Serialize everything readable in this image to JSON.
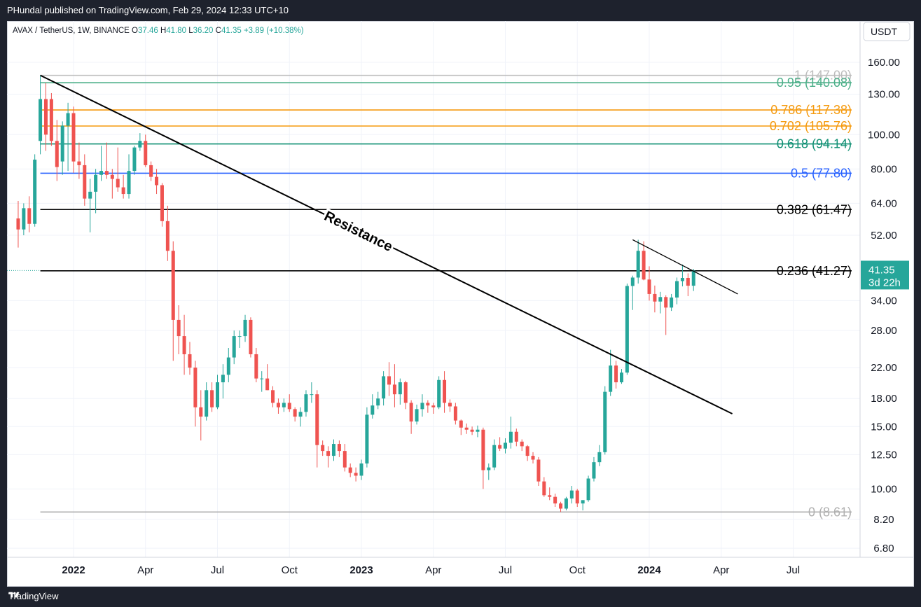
{
  "header": {
    "published": "PHundal published on TradingView.com, Feb 29, 2024 12:33 UTC+10"
  },
  "footer": {
    "brand": "TradingView"
  },
  "colors": {
    "up": "#26a69a",
    "down": "#ef5350",
    "grid": "#f0f3fa"
  },
  "chart_data": {
    "type": "candlestick",
    "symbol_line": {
      "symbol": "AVAX / TetherUS, 1W, BINANCE",
      "o_label": "O",
      "o": "37.46",
      "h_label": "H",
      "h": "41.80",
      "l_label": "L",
      "l": "36.20",
      "c_label": "C",
      "c": "41.35",
      "change": "+3.89 (+10.38%)"
    },
    "currency": "USDT",
    "scale": "log",
    "y_ticks": [
      "160.00",
      "130.00",
      "100.00",
      "80.00",
      "64.00",
      "52.00",
      "34.00",
      "28.00",
      "22.00",
      "18.00",
      "15.00",
      "12.50",
      "10.00",
      "8.20",
      "6.80"
    ],
    "x_ticks": [
      {
        "label": "2022",
        "date": "2022-01-03",
        "bold": true
      },
      {
        "label": "Apr",
        "date": "2022-04-04",
        "bold": false
      },
      {
        "label": "Jul",
        "date": "2022-07-04",
        "bold": false
      },
      {
        "label": "Oct",
        "date": "2022-10-03",
        "bold": false
      },
      {
        "label": "2023",
        "date": "2023-01-02",
        "bold": true
      },
      {
        "label": "Apr",
        "date": "2023-04-03",
        "bold": false
      },
      {
        "label": "Jul",
        "date": "2023-07-03",
        "bold": false
      },
      {
        "label": "Oct",
        "date": "2023-10-02",
        "bold": false
      },
      {
        "label": "2024",
        "date": "2024-01-01",
        "bold": true
      },
      {
        "label": "Apr",
        "date": "2024-04-01",
        "bold": false
      },
      {
        "label": "Jul",
        "date": "2024-07-01",
        "bold": false
      }
    ],
    "fib_levels": [
      {
        "label": "1 (147.00)",
        "value": 147.0,
        "color": "#bdbdbd"
      },
      {
        "label": "0.95 (140.08)",
        "value": 140.08,
        "color": "#4caf89"
      },
      {
        "label": "0.786 (117.38)",
        "value": 117.38,
        "color": "#f59a0e"
      },
      {
        "label": "0.702 (105.76)",
        "value": 105.76,
        "color": "#f59a0e"
      },
      {
        "label": "0.618 (94.14)",
        "value": 94.14,
        "color": "#0f8f73"
      },
      {
        "label": "0.5 (77.80)",
        "value": 77.8,
        "color": "#2962ff"
      },
      {
        "label": "0.382 (61.47)",
        "value": 61.47,
        "color": "#000000"
      },
      {
        "label": "0.236 (41.27)",
        "value": 41.27,
        "color": "#000000"
      },
      {
        "label": "0 (8.61)",
        "value": 8.61,
        "color": "#b0b0b0"
      }
    ],
    "trendlines": [
      {
        "from": {
          "date": "2021-11-22",
          "price": 147.0
        },
        "to": {
          "date": "2024-04-15",
          "price": 16.3
        },
        "label": "Resistance",
        "width": 2
      },
      {
        "from": {
          "date": "2023-12-11",
          "price": 50.5
        },
        "to": {
          "date": "2024-04-22",
          "price": 35.5
        },
        "label": "",
        "width": 1.3
      }
    ],
    "price_badge": {
      "price": "41.35",
      "countdown": "3d 22h",
      "value": 41.35
    },
    "candles": [
      {
        "d": "2021-10-25",
        "o": 58,
        "h": 65,
        "l": 48,
        "c": 54
      },
      {
        "d": "2021-11-01",
        "o": 54,
        "h": 64,
        "l": 52,
        "c": 62
      },
      {
        "d": "2021-11-08",
        "o": 62,
        "h": 67,
        "l": 53,
        "c": 56
      },
      {
        "d": "2021-11-15",
        "o": 56,
        "h": 88,
        "l": 55,
        "c": 85
      },
      {
        "d": "2021-11-22",
        "o": 96,
        "h": 147,
        "l": 88,
        "c": 126
      },
      {
        "d": "2021-11-29",
        "o": 126,
        "h": 140,
        "l": 90,
        "c": 100
      },
      {
        "d": "2021-12-06",
        "o": 126,
        "h": 131,
        "l": 93,
        "c": 96
      },
      {
        "d": "2021-12-13",
        "o": 96,
        "h": 110,
        "l": 74,
        "c": 81
      },
      {
        "d": "2021-12-20",
        "o": 84,
        "h": 109,
        "l": 77,
        "c": 106
      },
      {
        "d": "2021-12-27",
        "o": 106,
        "h": 123,
        "l": 79,
        "c": 115
      },
      {
        "d": "2022-01-03",
        "o": 115,
        "h": 120,
        "l": 78,
        "c": 84
      },
      {
        "d": "2022-01-10",
        "o": 84,
        "h": 95,
        "l": 75,
        "c": 82
      },
      {
        "d": "2022-01-17",
        "o": 82,
        "h": 88,
        "l": 63,
        "c": 66
      },
      {
        "d": "2022-01-24",
        "o": 66,
        "h": 75,
        "l": 53,
        "c": 69
      },
      {
        "d": "2022-01-31",
        "o": 69,
        "h": 80,
        "l": 60,
        "c": 77
      },
      {
        "d": "2022-02-07",
        "o": 77,
        "h": 93,
        "l": 74,
        "c": 79
      },
      {
        "d": "2022-02-14",
        "o": 79,
        "h": 95,
        "l": 75,
        "c": 77
      },
      {
        "d": "2022-02-21",
        "o": 77,
        "h": 80,
        "l": 66,
        "c": 75
      },
      {
        "d": "2022-02-28",
        "o": 75,
        "h": 92,
        "l": 69,
        "c": 71
      },
      {
        "d": "2022-03-07",
        "o": 71,
        "h": 77,
        "l": 66,
        "c": 68
      },
      {
        "d": "2022-03-14",
        "o": 68,
        "h": 88,
        "l": 66,
        "c": 79
      },
      {
        "d": "2022-03-21",
        "o": 79,
        "h": 93,
        "l": 77,
        "c": 92
      },
      {
        "d": "2022-03-28",
        "o": 92,
        "h": 101,
        "l": 90,
        "c": 96
      },
      {
        "d": "2022-04-04",
        "o": 96,
        "h": 100,
        "l": 81,
        "c": 82
      },
      {
        "d": "2022-04-11",
        "o": 82,
        "h": 84,
        "l": 74,
        "c": 76
      },
      {
        "d": "2022-04-18",
        "o": 76,
        "h": 80,
        "l": 68,
        "c": 72
      },
      {
        "d": "2022-04-25",
        "o": 72,
        "h": 73,
        "l": 55,
        "c": 57
      },
      {
        "d": "2022-05-02",
        "o": 57,
        "h": 63,
        "l": 44,
        "c": 47
      },
      {
        "d": "2022-05-09",
        "o": 47,
        "h": 50,
        "l": 23,
        "c": 30
      },
      {
        "d": "2022-05-16",
        "o": 30,
        "h": 33,
        "l": 24,
        "c": 27
      },
      {
        "d": "2022-05-23",
        "o": 27,
        "h": 31,
        "l": 21,
        "c": 24
      },
      {
        "d": "2022-05-30",
        "o": 24,
        "h": 26,
        "l": 21,
        "c": 22
      },
      {
        "d": "2022-06-06",
        "o": 22,
        "h": 23,
        "l": 15,
        "c": 17
      },
      {
        "d": "2022-06-13",
        "o": 17,
        "h": 19,
        "l": 13.7,
        "c": 16
      },
      {
        "d": "2022-06-20",
        "o": 16,
        "h": 20,
        "l": 15.6,
        "c": 19
      },
      {
        "d": "2022-06-27",
        "o": 19,
        "h": 20,
        "l": 16.5,
        "c": 17
      },
      {
        "d": "2022-07-04",
        "o": 17,
        "h": 21,
        "l": 16.8,
        "c": 20
      },
      {
        "d": "2022-07-11",
        "o": 20,
        "h": 22.5,
        "l": 18,
        "c": 21
      },
      {
        "d": "2022-07-18",
        "o": 21,
        "h": 25,
        "l": 20,
        "c": 23.5
      },
      {
        "d": "2022-07-25",
        "o": 23.5,
        "h": 28,
        "l": 22.5,
        "c": 27
      },
      {
        "d": "2022-08-01",
        "o": 27,
        "h": 28,
        "l": 25,
        "c": 27
      },
      {
        "d": "2022-08-08",
        "o": 27,
        "h": 31,
        "l": 26,
        "c": 30
      },
      {
        "d": "2022-08-15",
        "o": 30,
        "h": 30.5,
        "l": 23.5,
        "c": 24
      },
      {
        "d": "2022-08-22",
        "o": 24,
        "h": 25,
        "l": 20,
        "c": 20.5
      },
      {
        "d": "2022-08-29",
        "o": 20.5,
        "h": 21.5,
        "l": 18.8,
        "c": 20.5
      },
      {
        "d": "2022-09-05",
        "o": 20.5,
        "h": 22.5,
        "l": 19,
        "c": 19
      },
      {
        "d": "2022-09-12",
        "o": 19,
        "h": 19.5,
        "l": 17,
        "c": 17.5
      },
      {
        "d": "2022-09-19",
        "o": 17.5,
        "h": 18,
        "l": 16.3,
        "c": 17
      },
      {
        "d": "2022-09-26",
        "o": 17,
        "h": 18,
        "l": 16.5,
        "c": 17.5
      },
      {
        "d": "2022-10-03",
        "o": 17.5,
        "h": 18.5,
        "l": 16.5,
        "c": 16.8
      },
      {
        "d": "2022-10-10",
        "o": 16.8,
        "h": 17,
        "l": 15.5,
        "c": 16
      },
      {
        "d": "2022-10-17",
        "o": 16,
        "h": 17,
        "l": 15,
        "c": 16.5
      },
      {
        "d": "2022-10-24",
        "o": 16.5,
        "h": 19,
        "l": 16,
        "c": 18.5
      },
      {
        "d": "2022-10-31",
        "o": 18.5,
        "h": 20,
        "l": 17.5,
        "c": 18.5
      },
      {
        "d": "2022-11-07",
        "o": 18.5,
        "h": 19,
        "l": 11.5,
        "c": 13.3
      },
      {
        "d": "2022-11-14",
        "o": 13.3,
        "h": 13.7,
        "l": 12.4,
        "c": 12.8
      },
      {
        "d": "2022-11-21",
        "o": 12.8,
        "h": 13.2,
        "l": 11.5,
        "c": 12.4
      },
      {
        "d": "2022-11-28",
        "o": 12.4,
        "h": 13.8,
        "l": 12,
        "c": 13.4
      },
      {
        "d": "2022-12-05",
        "o": 13.4,
        "h": 13.7,
        "l": 12.3,
        "c": 12.8
      },
      {
        "d": "2022-12-12",
        "o": 12.8,
        "h": 13.4,
        "l": 11.2,
        "c": 11.5
      },
      {
        "d": "2022-12-19",
        "o": 11.5,
        "h": 11.8,
        "l": 10.8,
        "c": 11.1
      },
      {
        "d": "2022-12-26",
        "o": 11.1,
        "h": 11.5,
        "l": 10.5,
        "c": 10.9
      },
      {
        "d": "2023-01-02",
        "o": 10.9,
        "h": 12.1,
        "l": 10.6,
        "c": 11.8
      },
      {
        "d": "2023-01-09",
        "o": 11.8,
        "h": 17,
        "l": 11.5,
        "c": 16.2
      },
      {
        "d": "2023-01-16",
        "o": 16.2,
        "h": 18.5,
        "l": 15.8,
        "c": 17.2
      },
      {
        "d": "2023-01-23",
        "o": 17.2,
        "h": 18.8,
        "l": 16.8,
        "c": 18
      },
      {
        "d": "2023-01-30",
        "o": 18,
        "h": 21.5,
        "l": 17.2,
        "c": 20.8
      },
      {
        "d": "2023-02-06",
        "o": 20.8,
        "h": 22.8,
        "l": 18.3,
        "c": 19.7
      },
      {
        "d": "2023-02-13",
        "o": 19.7,
        "h": 22.5,
        "l": 17,
        "c": 18.5
      },
      {
        "d": "2023-02-20",
        "o": 18.5,
        "h": 20.5,
        "l": 17.3,
        "c": 20
      },
      {
        "d": "2023-02-27",
        "o": 20,
        "h": 20.2,
        "l": 16.8,
        "c": 17.5
      },
      {
        "d": "2023-03-06",
        "o": 17.5,
        "h": 17.8,
        "l": 14.3,
        "c": 15.5
      },
      {
        "d": "2023-03-13",
        "o": 15.5,
        "h": 17.3,
        "l": 15.2,
        "c": 16.8
      },
      {
        "d": "2023-03-20",
        "o": 16.8,
        "h": 18.5,
        "l": 16,
        "c": 17.5
      },
      {
        "d": "2023-03-27",
        "o": 17.5,
        "h": 17.8,
        "l": 16.4,
        "c": 17.2
      },
      {
        "d": "2023-04-03",
        "o": 17.2,
        "h": 17.5,
        "l": 16.3,
        "c": 17
      },
      {
        "d": "2023-04-10",
        "o": 17,
        "h": 20.8,
        "l": 16.8,
        "c": 20.3
      },
      {
        "d": "2023-04-17",
        "o": 20.3,
        "h": 21.5,
        "l": 16.4,
        "c": 17.5
      },
      {
        "d": "2023-04-24",
        "o": 17.5,
        "h": 17.9,
        "l": 16.5,
        "c": 17.1
      },
      {
        "d": "2023-05-01",
        "o": 17.1,
        "h": 17.5,
        "l": 15.2,
        "c": 15.6
      },
      {
        "d": "2023-05-08",
        "o": 15.6,
        "h": 15.7,
        "l": 14.2,
        "c": 14.9
      },
      {
        "d": "2023-05-15",
        "o": 14.9,
        "h": 15.3,
        "l": 14.3,
        "c": 14.7
      },
      {
        "d": "2023-05-22",
        "o": 14.7,
        "h": 15,
        "l": 14.2,
        "c": 14.5
      },
      {
        "d": "2023-05-29",
        "o": 14.5,
        "h": 15.1,
        "l": 14,
        "c": 14.7
      },
      {
        "d": "2023-06-05",
        "o": 14.7,
        "h": 14.9,
        "l": 10,
        "c": 11.3
      },
      {
        "d": "2023-06-12",
        "o": 11.3,
        "h": 11.8,
        "l": 10.6,
        "c": 11.5
      },
      {
        "d": "2023-06-19",
        "o": 11.5,
        "h": 13.8,
        "l": 11.3,
        "c": 13.3
      },
      {
        "d": "2023-06-26",
        "o": 13.3,
        "h": 14,
        "l": 12.8,
        "c": 13
      },
      {
        "d": "2023-07-03",
        "o": 13,
        "h": 13.9,
        "l": 12.6,
        "c": 13.5
      },
      {
        "d": "2023-07-10",
        "o": 13.5,
        "h": 16,
        "l": 13,
        "c": 14.5
      },
      {
        "d": "2023-07-17",
        "o": 14.5,
        "h": 14.8,
        "l": 13.2,
        "c": 13.6
      },
      {
        "d": "2023-07-24",
        "o": 13.6,
        "h": 13.8,
        "l": 12.8,
        "c": 13.2
      },
      {
        "d": "2023-07-31",
        "o": 13.2,
        "h": 13.3,
        "l": 12,
        "c": 12.4
      },
      {
        "d": "2023-08-07",
        "o": 12.4,
        "h": 12.7,
        "l": 11.8,
        "c": 12.1
      },
      {
        "d": "2023-08-14",
        "o": 12.1,
        "h": 12.3,
        "l": 10.2,
        "c": 10.5
      },
      {
        "d": "2023-08-21",
        "o": 10.5,
        "h": 10.8,
        "l": 9.5,
        "c": 9.6
      },
      {
        "d": "2023-08-28",
        "o": 9.6,
        "h": 10.1,
        "l": 9.3,
        "c": 9.5
      },
      {
        "d": "2023-09-04",
        "o": 9.5,
        "h": 9.7,
        "l": 8.9,
        "c": 9.1
      },
      {
        "d": "2023-09-11",
        "o": 9.1,
        "h": 9.2,
        "l": 8.61,
        "c": 8.8
      },
      {
        "d": "2023-09-18",
        "o": 8.8,
        "h": 9.5,
        "l": 8.7,
        "c": 9.4
      },
      {
        "d": "2023-09-25",
        "o": 9.4,
        "h": 10.2,
        "l": 9.1,
        "c": 9.9
      },
      {
        "d": "2023-10-02",
        "o": 9.9,
        "h": 10,
        "l": 8.9,
        "c": 9.1
      },
      {
        "d": "2023-10-09",
        "o": 9.1,
        "h": 9.3,
        "l": 8.7,
        "c": 9.3
      },
      {
        "d": "2023-10-16",
        "o": 9.3,
        "h": 10.9,
        "l": 9.2,
        "c": 10.7
      },
      {
        "d": "2023-10-23",
        "o": 10.7,
        "h": 12.3,
        "l": 10.5,
        "c": 11.9
      },
      {
        "d": "2023-10-30",
        "o": 11.9,
        "h": 13.3,
        "l": 11.6,
        "c": 12.7
      },
      {
        "d": "2023-11-06",
        "o": 12.7,
        "h": 19.5,
        "l": 12.5,
        "c": 18.8
      },
      {
        "d": "2023-11-13",
        "o": 18.8,
        "h": 24.7,
        "l": 18.3,
        "c": 22.3
      },
      {
        "d": "2023-11-20",
        "o": 22.3,
        "h": 23,
        "l": 19.2,
        "c": 20
      },
      {
        "d": "2023-11-27",
        "o": 20,
        "h": 21.8,
        "l": 19.8,
        "c": 21.3
      },
      {
        "d": "2023-12-04",
        "o": 21.3,
        "h": 38,
        "l": 21,
        "c": 37.4
      },
      {
        "d": "2023-12-11",
        "o": 37.4,
        "h": 40,
        "l": 32,
        "c": 39.5
      },
      {
        "d": "2023-12-18",
        "o": 39.5,
        "h": 50.5,
        "l": 38,
        "c": 47
      },
      {
        "d": "2023-12-25",
        "o": 47,
        "h": 50,
        "l": 38.8,
        "c": 39
      },
      {
        "d": "2024-01-01",
        "o": 39,
        "h": 42.5,
        "l": 34,
        "c": 35.5
      },
      {
        "d": "2024-01-08",
        "o": 35.5,
        "h": 37.5,
        "l": 31.5,
        "c": 33.8
      },
      {
        "d": "2024-01-15",
        "o": 33.8,
        "h": 36,
        "l": 31.3,
        "c": 34.8
      },
      {
        "d": "2024-01-22",
        "o": 34.8,
        "h": 35.2,
        "l": 27.2,
        "c": 32.5
      },
      {
        "d": "2024-01-29",
        "o": 32.5,
        "h": 35.5,
        "l": 31.8,
        "c": 34.7
      },
      {
        "d": "2024-02-05",
        "o": 34.7,
        "h": 39.5,
        "l": 33.2,
        "c": 38.6
      },
      {
        "d": "2024-02-12",
        "o": 38.6,
        "h": 43,
        "l": 37.3,
        "c": 39.4
      },
      {
        "d": "2024-02-19",
        "o": 39.4,
        "h": 40.6,
        "l": 35,
        "c": 37.46
      },
      {
        "d": "2024-02-26",
        "o": 37.46,
        "h": 41.8,
        "l": 36.2,
        "c": 41.35
      }
    ]
  }
}
